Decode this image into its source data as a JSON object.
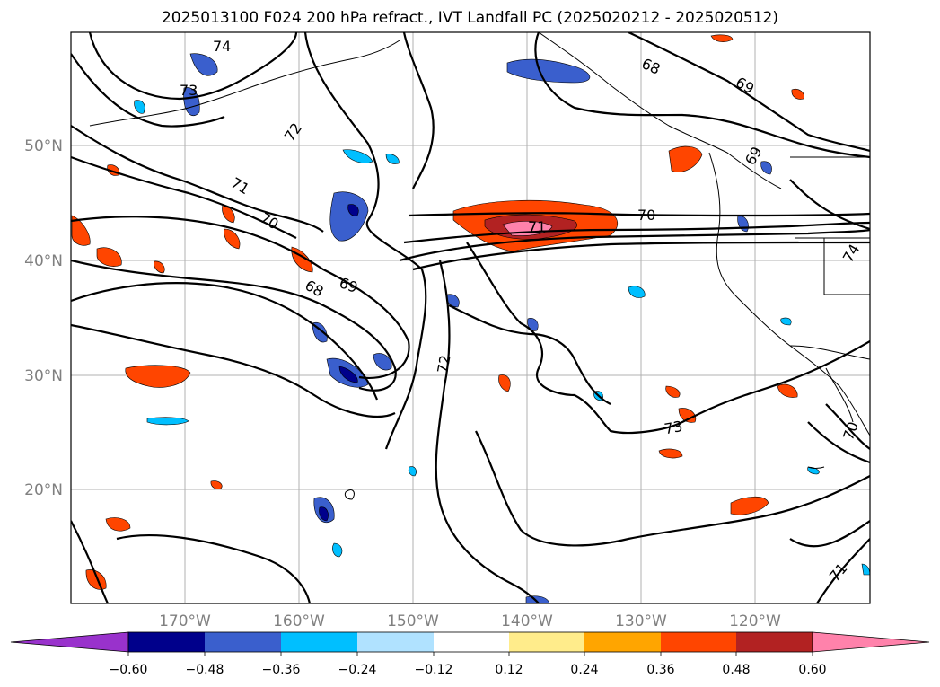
{
  "title": "2025013100 F024 200 hPa refract., IVT Landfall PC (2025020212 - 2025020512)",
  "map": {
    "lat_labels": [
      "50°N",
      "40°N",
      "30°N",
      "20°N"
    ],
    "lon_labels": [
      "170°W",
      "160°W",
      "150°W",
      "140°W",
      "130°W",
      "120°W"
    ],
    "contour_labels": [
      "74",
      "73",
      "72",
      "71",
      "70",
      "69",
      "68",
      "72",
      "71",
      "70",
      "68",
      "69",
      "73",
      "69",
      "71",
      "74",
      "70"
    ],
    "contour_color": "#000000",
    "grid": true
  },
  "colorbar": {
    "tick_labels": [
      "−0.60",
      "−0.48",
      "−0.36",
      "−0.24",
      "−0.12",
      "0.12",
      "0.24",
      "0.36",
      "0.48",
      "0.60"
    ],
    "colors": [
      "#9932cc",
      "#00008b",
      "#3a5fcd",
      "#00bfff",
      "#b0e2ff",
      "#ffffff",
      "#ffec8b",
      "#ffa500",
      "#ff4500",
      "#b22222",
      "#ff82ab"
    ],
    "extend": "both"
  }
}
